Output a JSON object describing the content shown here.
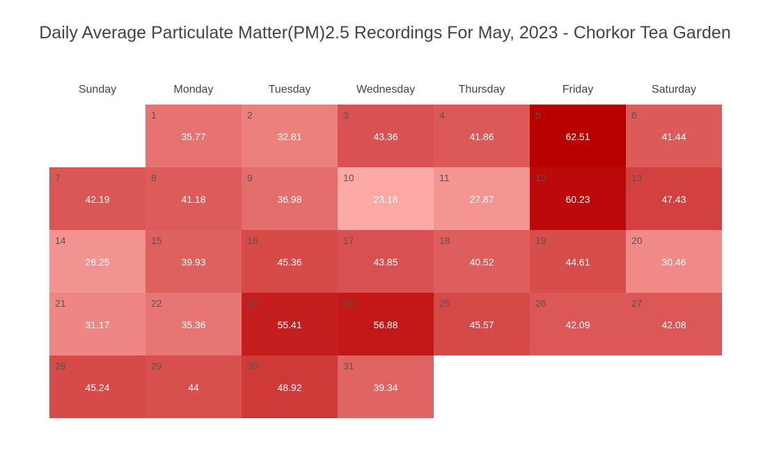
{
  "chart_data": {
    "type": "heatmap",
    "title": "Daily Average Particulate Matter(PM)2.5 Recordings For May, 2023 - Chorkor Tea Garden",
    "weekdays": [
      "Sunday",
      "Monday",
      "Tuesday",
      "Wednesday",
      "Thursday",
      "Friday",
      "Saturday"
    ],
    "first_weekday_index": 1,
    "days": [
      {
        "day": "1",
        "value": "35.77"
      },
      {
        "day": "2",
        "value": "32.81"
      },
      {
        "day": "3",
        "value": "43.36"
      },
      {
        "day": "4",
        "value": "41.86"
      },
      {
        "day": "5",
        "value": "62.51"
      },
      {
        "day": "6",
        "value": "41.44"
      },
      {
        "day": "7",
        "value": "42.19"
      },
      {
        "day": "8",
        "value": "41.18"
      },
      {
        "day": "9",
        "value": "36.98"
      },
      {
        "day": "10",
        "value": "23.18"
      },
      {
        "day": "11",
        "value": "27.87"
      },
      {
        "day": "12",
        "value": "60.23"
      },
      {
        "day": "13",
        "value": "47.43"
      },
      {
        "day": "14",
        "value": "28.25"
      },
      {
        "day": "15",
        "value": "39.93"
      },
      {
        "day": "16",
        "value": "45.36"
      },
      {
        "day": "17",
        "value": "43.85"
      },
      {
        "day": "18",
        "value": "40.52"
      },
      {
        "day": "19",
        "value": "44.61"
      },
      {
        "day": "20",
        "value": "30.46"
      },
      {
        "day": "21",
        "value": "31.17"
      },
      {
        "day": "22",
        "value": "35.36"
      },
      {
        "day": "23",
        "value": "55.41"
      },
      {
        "day": "24",
        "value": "56.88"
      },
      {
        "day": "25",
        "value": "45.57"
      },
      {
        "day": "26",
        "value": "42.09"
      },
      {
        "day": "27",
        "value": "42.08"
      },
      {
        "day": "28",
        "value": "45.24"
      },
      {
        "day": "29",
        "value": "44"
      },
      {
        "day": "30",
        "value": "48.92"
      },
      {
        "day": "31",
        "value": "39.34"
      }
    ],
    "color_low": "#fca9a6",
    "color_high": "#b80000",
    "value_range": [
      23.18,
      62.51
    ]
  }
}
